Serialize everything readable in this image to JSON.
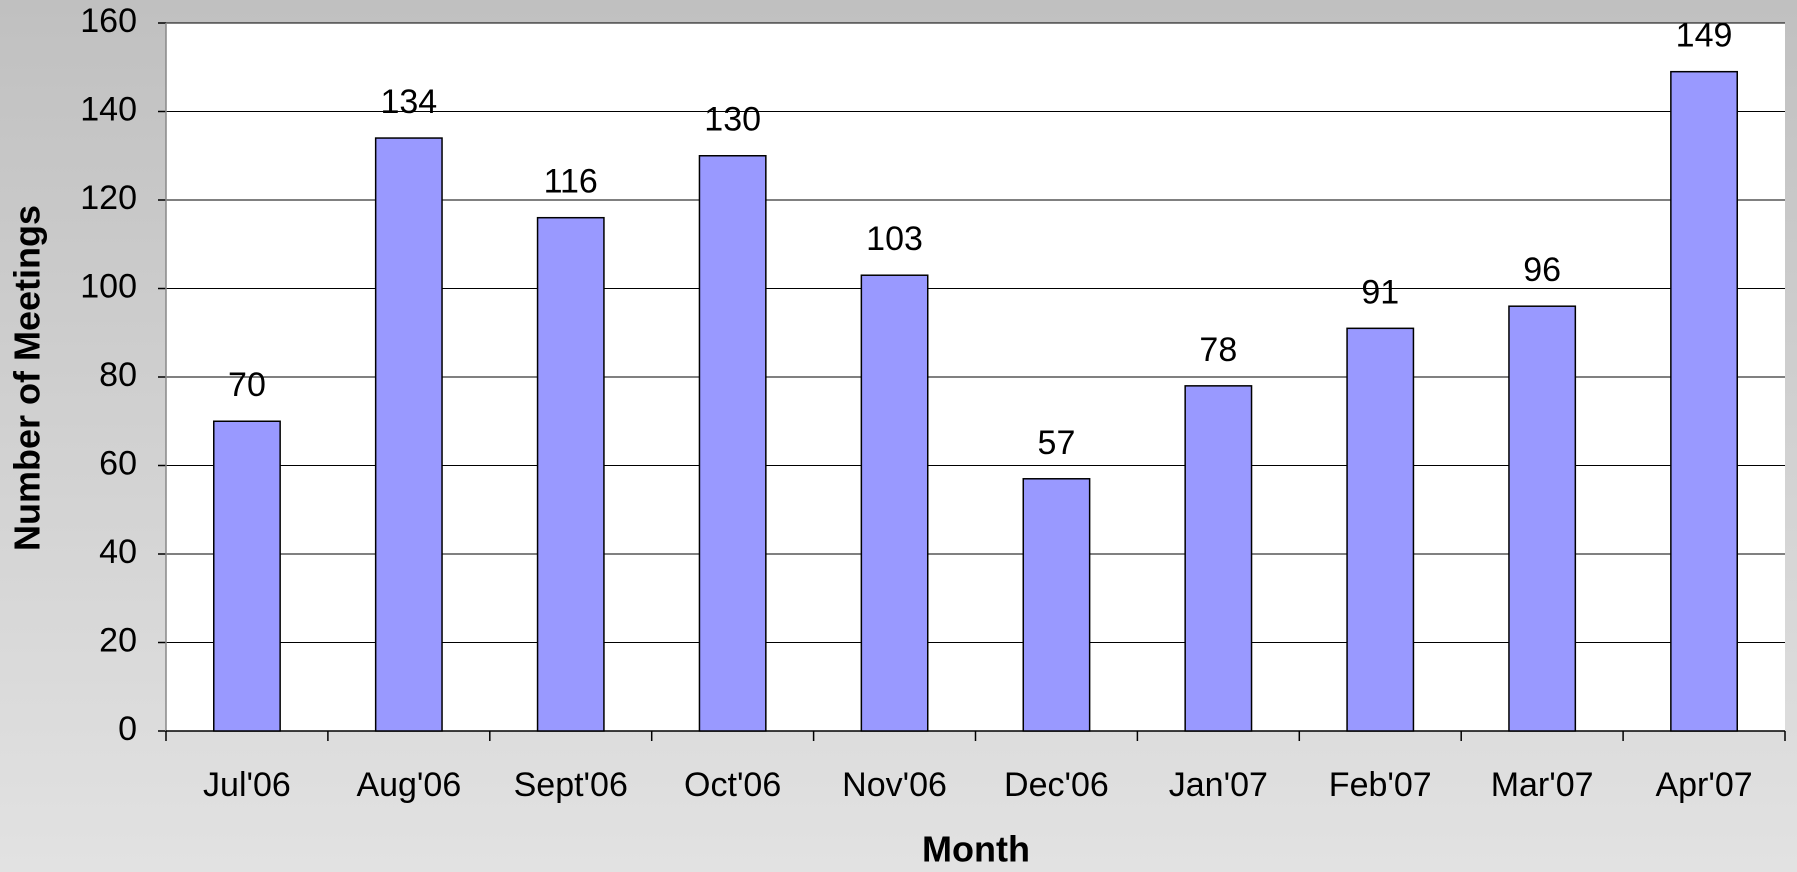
{
  "chart_data": {
    "type": "bar",
    "xlabel": "Month",
    "ylabel": "Number of Meetings",
    "categories": [
      "Jul'06",
      "Aug'06",
      "Sept'06",
      "Oct'06",
      "Nov'06",
      "Dec'06",
      "Jan'07",
      "Feb'07",
      "Mar'07",
      "Apr'07"
    ],
    "values": [
      70,
      134,
      116,
      130,
      103,
      57,
      78,
      91,
      96,
      149
    ],
    "color": "#9999ff",
    "ylim": [
      0,
      160
    ],
    "yticks": [
      0,
      20,
      40,
      60,
      80,
      100,
      120,
      140,
      160
    ],
    "grid": true
  }
}
